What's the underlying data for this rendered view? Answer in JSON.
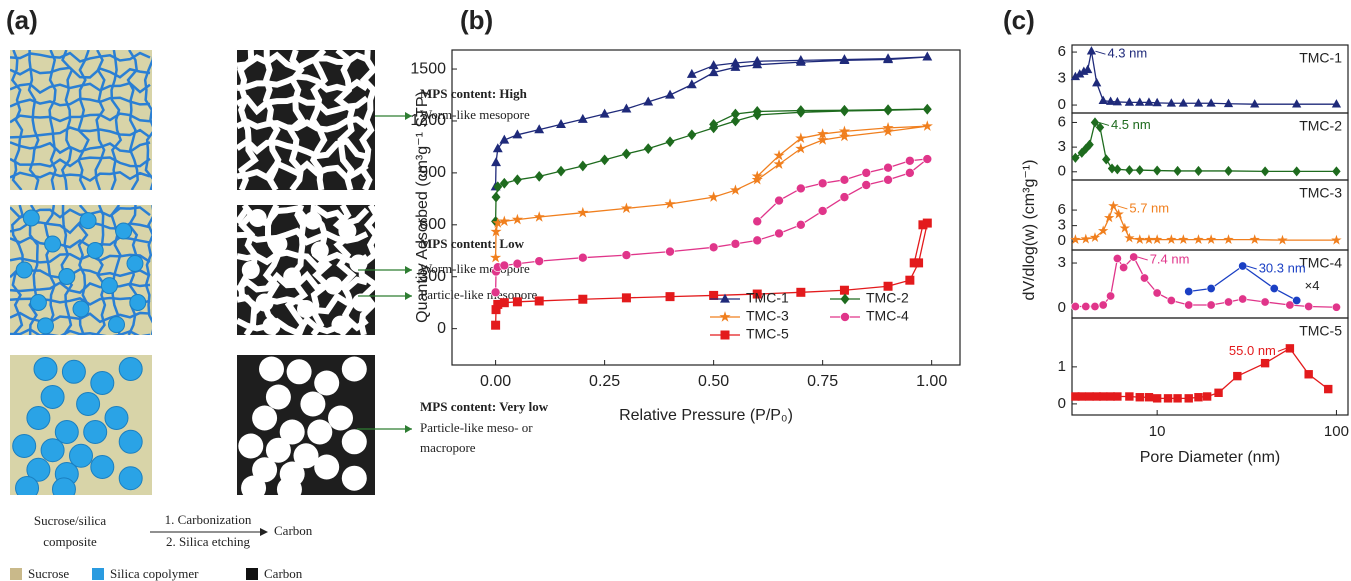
{
  "diagram": {
    "panel_label": "(a)",
    "rows": [
      {
        "title": "MPS content:  High",
        "pores": [
          [
            "Worm-like mesopore"
          ]
        ]
      },
      {
        "title": "MPS content:  Low",
        "pores": [
          [
            "Worm-like mesopore"
          ],
          [
            "Particle-like mesopore"
          ]
        ]
      },
      {
        "title": "MPS content:  Very low",
        "pores": [
          [
            "Particle-like meso- or",
            "macropore"
          ]
        ]
      }
    ],
    "scheme": {
      "from": [
        "Sucrose/silica",
        "composite"
      ],
      "steps": [
        "1. Carbonization",
        "2. Silica etching"
      ],
      "to": "Carbon"
    },
    "legend": [
      "Sucrose",
      "Silica copolymer",
      "Carbon"
    ]
  },
  "panel_c": {
    "label": "(c)",
    "x_label": "Pore Diameter (nm)",
    "y_label": "dV/dlog(w) (cm³g⁻¹)"
  },
  "chart_data": [
    {
      "type": "line",
      "panel": "(b)",
      "x_label": "Relative Pressure (P/P₀)",
      "y_label": "Quantity Adsorbed (cm³g⁻¹ STP)",
      "xlim": [
        -0.1,
        1.065
      ],
      "ylim": [
        -210,
        1610
      ],
      "xticks": [
        {
          "value": 0,
          "label": "0.00"
        },
        {
          "value": 0.25,
          "label": "0.25"
        },
        {
          "value": 0.5,
          "label": "0.50"
        },
        {
          "value": 0.75,
          "label": "0.75"
        },
        {
          "value": 1,
          "label": "1.00"
        }
      ],
      "yticks": [
        0,
        300,
        600,
        900,
        1200,
        1500
      ],
      "legend": "lower right",
      "series": [
        {
          "name": "TMC-1",
          "color": "#1f2a7a",
          "marker": "triangle",
          "x": [
            0,
            0.001,
            0.005,
            0.02,
            0.05,
            0.1,
            0.15,
            0.2,
            0.25,
            0.3,
            0.35,
            0.4,
            0.45,
            0.5,
            0.55,
            0.6,
            0.7,
            0.8,
            0.9,
            0.99,
            0.9,
            0.8,
            0.7,
            0.6,
            0.55,
            0.5,
            0.45
          ],
          "values": [
            820,
            960,
            1040,
            1090,
            1120,
            1150,
            1180,
            1210,
            1240,
            1270,
            1310,
            1350,
            1410,
            1480,
            1510,
            1525,
            1540,
            1550,
            1555,
            1570,
            1560,
            1555,
            1550,
            1545,
            1535,
            1520,
            1470
          ]
        },
        {
          "name": "TMC-2",
          "color": "#1e6b1e",
          "marker": "diamond",
          "x": [
            0,
            0.001,
            0.005,
            0.02,
            0.05,
            0.1,
            0.15,
            0.2,
            0.25,
            0.3,
            0.35,
            0.4,
            0.45,
            0.5,
            0.55,
            0.6,
            0.7,
            0.8,
            0.9,
            0.99,
            0.9,
            0.8,
            0.7,
            0.6,
            0.55,
            0.5
          ],
          "values": [
            620,
            760,
            820,
            840,
            860,
            880,
            910,
            940,
            975,
            1010,
            1040,
            1080,
            1120,
            1160,
            1200,
            1235,
            1250,
            1258,
            1262,
            1268,
            1265,
            1262,
            1260,
            1255,
            1240,
            1180
          ]
        },
        {
          "name": "TMC-3",
          "color": "#f07f1e",
          "marker": "star",
          "x": [
            0,
            0.001,
            0.005,
            0.02,
            0.05,
            0.1,
            0.2,
            0.3,
            0.4,
            0.5,
            0.55,
            0.6,
            0.65,
            0.7,
            0.75,
            0.8,
            0.9,
            0.99,
            0.9,
            0.8,
            0.75,
            0.7,
            0.65,
            0.6
          ],
          "values": [
            410,
            560,
            610,
            620,
            630,
            645,
            670,
            695,
            720,
            760,
            800,
            860,
            950,
            1040,
            1090,
            1110,
            1140,
            1170,
            1160,
            1140,
            1125,
            1100,
            1000,
            880
          ]
        },
        {
          "name": "TMC-4",
          "color": "#e0358a",
          "marker": "circle",
          "x": [
            0,
            0.001,
            0.005,
            0.02,
            0.05,
            0.1,
            0.2,
            0.3,
            0.4,
            0.5,
            0.55,
            0.6,
            0.65,
            0.7,
            0.75,
            0.8,
            0.85,
            0.9,
            0.95,
            0.99,
            0.95,
            0.9,
            0.85,
            0.8,
            0.75,
            0.7,
            0.65,
            0.6
          ],
          "values": [
            210,
            330,
            355,
            365,
            375,
            390,
            410,
            425,
            445,
            470,
            490,
            510,
            550,
            600,
            680,
            760,
            830,
            860,
            900,
            980,
            970,
            930,
            900,
            860,
            840,
            810,
            740,
            620
          ]
        },
        {
          "name": "TMC-5",
          "color": "#e31a1c",
          "marker": "square",
          "x": [
            0,
            0.001,
            0.005,
            0.02,
            0.05,
            0.1,
            0.2,
            0.3,
            0.4,
            0.5,
            0.6,
            0.7,
            0.8,
            0.9,
            0.95,
            0.97,
            0.99,
            0.98,
            0.96
          ],
          "values": [
            20,
            110,
            140,
            150,
            155,
            160,
            170,
            178,
            185,
            192,
            200,
            210,
            222,
            245,
            280,
            380,
            610,
            600,
            380
          ]
        }
      ]
    },
    {
      "type": "line",
      "label": "TMC-1",
      "log_x": true,
      "xlim": [
        3.35,
        116
      ],
      "ylim": [
        -0.9,
        6.8
      ],
      "yticks": [
        0,
        3,
        6
      ],
      "series": [
        {
          "color": "#1f2a7a",
          "marker": "triangle",
          "x": [
            3.5,
            3.7,
            3.9,
            4.1,
            4.3,
            4.6,
            5,
            5.5,
            6,
            7,
            8,
            9,
            10,
            12,
            14,
            17,
            20,
            25,
            35,
            60,
            100
          ],
          "values": [
            3.2,
            3.5,
            3.8,
            4.0,
            6.1,
            2.5,
            0.5,
            0.4,
            0.35,
            0.3,
            0.3,
            0.3,
            0.25,
            0.2,
            0.2,
            0.2,
            0.2,
            0.15,
            0.1,
            0.1,
            0.1
          ]
        }
      ],
      "annotations": [
        "4.3 nm"
      ]
    },
    {
      "type": "line",
      "label": "TMC-2",
      "log_x": true,
      "xlim": [
        3.35,
        116
      ],
      "ylim": [
        -1.0,
        7.15
      ],
      "yticks": [
        0,
        3,
        6
      ],
      "series": [
        {
          "color": "#1e6b1e",
          "marker": "diamond",
          "x": [
            3.5,
            3.8,
            4.0,
            4.2,
            4.5,
            4.8,
            5.2,
            5.6,
            6,
            7,
            8,
            10,
            13,
            17,
            25,
            40,
            60,
            100
          ],
          "values": [
            1.7,
            2.3,
            2.8,
            3.3,
            6.0,
            5.4,
            1.5,
            0.4,
            0.3,
            0.2,
            0.2,
            0.15,
            0.1,
            0.1,
            0.1,
            0.05,
            0.05,
            0.05
          ]
        }
      ],
      "annotations": [
        "4.5 nm"
      ]
    },
    {
      "type": "line",
      "label": "TMC-3",
      "log_x": true,
      "xlim": [
        3.35,
        116
      ],
      "ylim": [
        -1.7,
        11.8
      ],
      "yticks": [
        0,
        3,
        6
      ],
      "series": [
        {
          "color": "#f07f1e",
          "marker": "star",
          "x": [
            3.5,
            4,
            4.5,
            5,
            5.4,
            5.7,
            6.1,
            6.6,
            7,
            8,
            9,
            10,
            12,
            14,
            17,
            20,
            25,
            35,
            50,
            100
          ],
          "values": [
            0.3,
            0.4,
            0.7,
            2,
            4.5,
            6.8,
            5.2,
            2.5,
            0.6,
            0.3,
            0.3,
            0.3,
            0.3,
            0.3,
            0.3,
            0.3,
            0.3,
            0.3,
            0.2,
            0.2
          ]
        }
      ],
      "annotations": [
        "5.7 nm"
      ]
    },
    {
      "type": "line",
      "label": "TMC-4",
      "log_x": true,
      "xlim": [
        3.35,
        116
      ],
      "ylim": [
        -0.67,
        3.87
      ],
      "yticks": [
        0,
        3
      ],
      "series": [
        {
          "color": "#e0358a",
          "marker": "circle",
          "x": [
            3.5,
            4,
            4.5,
            5,
            5.5,
            6,
            6.5,
            7.4,
            8.5,
            10,
            12,
            15,
            20,
            25,
            30,
            40,
            55,
            70,
            100
          ],
          "values": [
            0.1,
            0.1,
            0.1,
            0.2,
            0.8,
            3.3,
            2.7,
            3.4,
            2,
            1,
            0.5,
            0.2,
            0.2,
            0.4,
            0.6,
            0.4,
            0.2,
            0.1,
            0.05
          ]
        },
        {
          "color": "#1a3fc4",
          "marker": "circle",
          "x": [
            15,
            20,
            30,
            45,
            60
          ],
          "values": [
            1.1,
            1.3,
            2.8,
            1.3,
            0.5
          ]
        }
      ],
      "annotations": [
        "7.4 nm",
        "30.3 nm"
      ],
      "scale_label": "×4"
    },
    {
      "type": "line",
      "label": "TMC-5",
      "log_x": true,
      "xlim": [
        3.35,
        116
      ],
      "ylim": [
        -0.3,
        2.32
      ],
      "yticks": [
        0,
        1
      ],
      "xticks": [
        10,
        100
      ],
      "series": [
        {
          "color": "#e31a1c",
          "marker": "square",
          "x": [
            3.5,
            3.8,
            4.2,
            4.6,
            5,
            5.5,
            6,
            7,
            8,
            9,
            10,
            11.5,
            13,
            15,
            17,
            19,
            22,
            28,
            40,
            55,
            70,
            90
          ],
          "values": [
            0.2,
            0.2,
            0.2,
            0.2,
            0.2,
            0.2,
            0.2,
            0.2,
            0.18,
            0.18,
            0.15,
            0.15,
            0.15,
            0.15,
            0.18,
            0.2,
            0.3,
            0.75,
            1.1,
            1.5,
            0.8,
            0.4
          ]
        }
      ],
      "annotations": [
        "55.0 nm"
      ]
    }
  ]
}
